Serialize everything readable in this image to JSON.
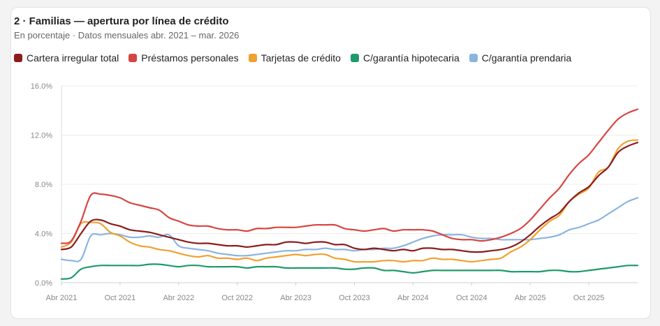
{
  "chart_data": {
    "type": "line",
    "title": "2 · Familias — apertura por línea de crédito",
    "subtitle": "En porcentaje · Datos mensuales abr. 2021 – mar. 2026",
    "ylim": [
      0,
      16
    ],
    "yticks": [
      "0.0%",
      "4.0%",
      "8.0%",
      "12.0%",
      "16.0%"
    ],
    "ytick_values": [
      0,
      4,
      8,
      12,
      16
    ],
    "x_tick_labels": [
      "Abr 2021",
      "Oct 2021",
      "Abr 2022",
      "Oct 2022",
      "Abr 2023",
      "Oct 2023",
      "Abr 2024",
      "Oct 2024",
      "Abr 2025",
      "Oct 2025"
    ],
    "x_tick_index": [
      0,
      6,
      12,
      18,
      24,
      30,
      36,
      42,
      48,
      54
    ],
    "x": [
      "2021-04",
      "2021-05",
      "2021-06",
      "2021-07",
      "2021-08",
      "2021-09",
      "2021-10",
      "2021-11",
      "2021-12",
      "2022-01",
      "2022-02",
      "2022-03",
      "2022-04",
      "2022-05",
      "2022-06",
      "2022-07",
      "2022-08",
      "2022-09",
      "2022-10",
      "2022-11",
      "2022-12",
      "2023-01",
      "2023-02",
      "2023-03",
      "2023-04",
      "2023-05",
      "2023-06",
      "2023-07",
      "2023-08",
      "2023-09",
      "2023-10",
      "2023-11",
      "2023-12",
      "2024-01",
      "2024-02",
      "2024-03",
      "2024-04",
      "2024-05",
      "2024-06",
      "2024-07",
      "2024-08",
      "2024-09",
      "2024-10",
      "2024-11",
      "2024-12",
      "2025-01",
      "2025-02",
      "2025-03",
      "2025-04",
      "2025-05",
      "2025-06",
      "2025-07",
      "2025-08",
      "2025-09",
      "2025-10",
      "2025-11",
      "2025-12",
      "2026-01",
      "2026-02",
      "2026-03"
    ],
    "grid": true,
    "legend_position": "top-left",
    "series": [
      {
        "name": "Cartera irregular total",
        "color": "#8b1c1c",
        "values": [
          2.7,
          2.9,
          4.0,
          5.0,
          5.1,
          4.8,
          4.6,
          4.3,
          4.2,
          4.1,
          3.9,
          3.7,
          3.5,
          3.3,
          3.2,
          3.2,
          3.1,
          3.0,
          3.0,
          2.9,
          3.0,
          3.1,
          3.1,
          3.3,
          3.3,
          3.2,
          3.3,
          3.3,
          3.1,
          3.1,
          2.8,
          2.7,
          2.8,
          2.7,
          2.6,
          2.7,
          2.6,
          2.8,
          2.8,
          2.7,
          2.7,
          2.6,
          2.5,
          2.5,
          2.6,
          2.7,
          2.9,
          3.3,
          3.9,
          4.6,
          5.2,
          5.7,
          6.6,
          7.3,
          7.8,
          8.7,
          9.4,
          10.6,
          11.1,
          11.4
        ]
      },
      {
        "name": "Préstamos personales",
        "color": "#d64541",
        "values": [
          3.2,
          3.4,
          5.0,
          7.1,
          7.2,
          7.1,
          6.9,
          6.5,
          6.3,
          6.1,
          5.9,
          5.3,
          5.0,
          4.7,
          4.6,
          4.6,
          4.4,
          4.3,
          4.3,
          4.2,
          4.4,
          4.4,
          4.5,
          4.5,
          4.5,
          4.6,
          4.7,
          4.7,
          4.7,
          4.4,
          4.3,
          4.2,
          4.3,
          4.4,
          4.2,
          4.3,
          4.3,
          4.3,
          4.2,
          3.9,
          3.6,
          3.5,
          3.5,
          3.4,
          3.5,
          3.7,
          4.0,
          4.4,
          5.1,
          6.0,
          6.9,
          7.7,
          8.8,
          9.7,
          10.4,
          11.4,
          12.4,
          13.3,
          13.8,
          14.1
        ]
      },
      {
        "name": "Tarjetas de crédito",
        "color": "#f0a030",
        "values": [
          2.9,
          3.3,
          4.8,
          4.9,
          4.8,
          4.1,
          3.8,
          3.3,
          3.0,
          2.9,
          2.7,
          2.6,
          2.4,
          2.2,
          2.1,
          2.2,
          2.0,
          2.0,
          1.9,
          2.0,
          1.8,
          2.0,
          2.1,
          2.2,
          2.3,
          2.2,
          2.3,
          2.3,
          2.0,
          1.9,
          1.7,
          1.7,
          1.7,
          1.8,
          1.8,
          1.7,
          1.8,
          1.8,
          2.0,
          1.9,
          1.9,
          1.8,
          1.7,
          1.8,
          1.9,
          2.0,
          2.5,
          2.9,
          3.5,
          4.3,
          5.0,
          5.5,
          6.6,
          7.2,
          7.7,
          9.0,
          9.4,
          10.9,
          11.5,
          11.6
        ]
      },
      {
        "name": "C/garantía hipotecaria",
        "color": "#1f9a6a",
        "values": [
          0.3,
          0.4,
          1.1,
          1.3,
          1.4,
          1.4,
          1.4,
          1.4,
          1.4,
          1.5,
          1.5,
          1.4,
          1.3,
          1.4,
          1.4,
          1.3,
          1.3,
          1.3,
          1.3,
          1.2,
          1.3,
          1.3,
          1.3,
          1.2,
          1.2,
          1.2,
          1.2,
          1.2,
          1.2,
          1.1,
          1.1,
          1.2,
          1.2,
          1.0,
          1.0,
          0.9,
          0.8,
          0.9,
          1.0,
          1.0,
          1.0,
          1.0,
          1.0,
          1.0,
          1.0,
          1.0,
          0.9,
          0.9,
          0.9,
          0.9,
          1.0,
          1.0,
          0.9,
          0.9,
          1.0,
          1.1,
          1.2,
          1.3,
          1.4,
          1.4
        ]
      },
      {
        "name": "C/garantía prendaria",
        "color": "#8ab4e0",
        "values": [
          1.9,
          1.8,
          1.9,
          3.8,
          3.9,
          4.0,
          3.9,
          3.7,
          3.7,
          3.8,
          3.7,
          3.9,
          3.0,
          2.8,
          2.7,
          2.6,
          2.4,
          2.3,
          2.2,
          2.2,
          2.3,
          2.4,
          2.5,
          2.6,
          2.6,
          2.7,
          2.7,
          2.8,
          2.7,
          2.7,
          2.6,
          2.7,
          2.7,
          2.8,
          2.8,
          3.0,
          3.3,
          3.6,
          3.8,
          3.9,
          3.9,
          3.9,
          3.7,
          3.6,
          3.6,
          3.5,
          3.5,
          3.5,
          3.5,
          3.6,
          3.7,
          3.9,
          4.3,
          4.5,
          4.8,
          5.1,
          5.6,
          6.1,
          6.6,
          6.9
        ]
      }
    ]
  }
}
